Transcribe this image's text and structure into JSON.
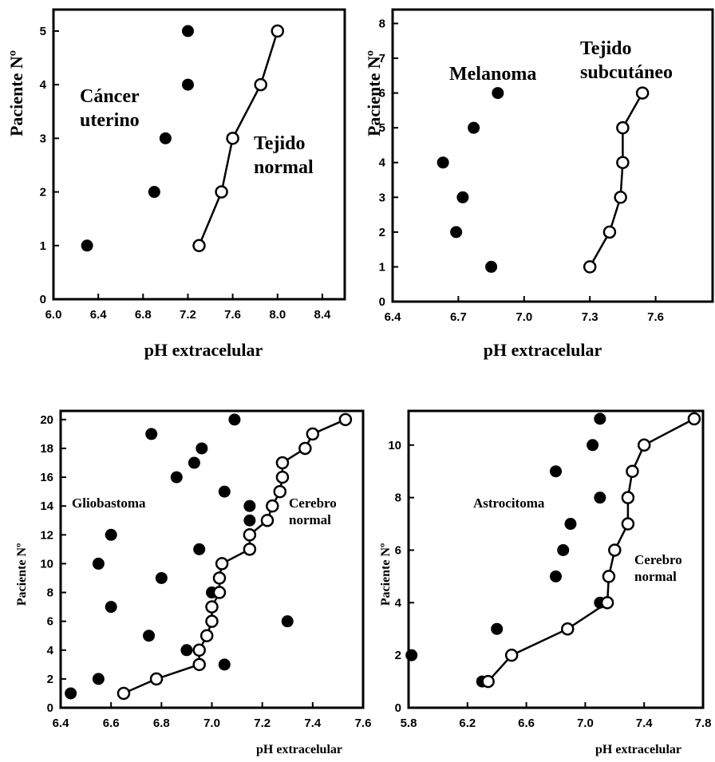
{
  "chart_data": [
    {
      "type": "scatter",
      "xlabel": "pH extracelular",
      "ylabel": "Paciente Nº",
      "xlim": [
        6.0,
        8.6
      ],
      "ylim": [
        0,
        5.4
      ],
      "xticks": [
        "6.0",
        "6.4",
        "6.8",
        "7.2",
        "7.6",
        "8.0",
        "8.4"
      ],
      "yticks": [
        "0",
        "1",
        "2",
        "3",
        "4",
        "5"
      ],
      "annotations": [
        {
          "lines": [
            "Cáncer",
            "uterino"
          ]
        },
        {
          "lines": [
            "Tejido",
            "normal"
          ]
        }
      ],
      "series": [
        {
          "marker": "filled",
          "connected": false,
          "points": [
            [
              6.3,
              1
            ],
            [
              6.9,
              2
            ],
            [
              7.0,
              3
            ],
            [
              7.2,
              4
            ],
            [
              7.2,
              5
            ]
          ]
        },
        {
          "marker": "open",
          "connected": true,
          "points": [
            [
              7.3,
              1
            ],
            [
              7.5,
              2
            ],
            [
              7.6,
              3
            ],
            [
              7.85,
              4
            ],
            [
              8.0,
              5
            ]
          ]
        }
      ]
    },
    {
      "type": "scatter",
      "xlabel": "pH extracelular",
      "ylabel": "Paciente Nº",
      "xlim": [
        6.4,
        7.86
      ],
      "ylim": [
        0,
        8.4
      ],
      "xticks": [
        "6.4",
        "6.7",
        "7.0",
        "7.3",
        "7.6"
      ],
      "yticks": [
        "0",
        "1",
        "2",
        "3",
        "4",
        "5",
        "6",
        "7",
        "8"
      ],
      "annotations": [
        {
          "lines": [
            "Melanoma"
          ]
        },
        {
          "lines": [
            "Tejido",
            "subcutáneo"
          ]
        }
      ],
      "series": [
        {
          "marker": "filled",
          "connected": false,
          "points": [
            [
              6.85,
              1
            ],
            [
              6.69,
              2
            ],
            [
              6.72,
              3
            ],
            [
              6.63,
              4
            ],
            [
              6.77,
              5
            ],
            [
              6.88,
              6
            ]
          ]
        },
        {
          "marker": "open",
          "connected": true,
          "points": [
            [
              7.3,
              1
            ],
            [
              7.39,
              2
            ],
            [
              7.44,
              3
            ],
            [
              7.45,
              4
            ],
            [
              7.45,
              5
            ],
            [
              7.54,
              6
            ]
          ]
        }
      ]
    },
    {
      "type": "scatter",
      "xlabel": "pH extracelular",
      "ylabel": "Paciente Nº",
      "xlim": [
        6.4,
        7.6
      ],
      "ylim": [
        0,
        20.6
      ],
      "xticks": [
        "6.4",
        "6.6",
        "6.8",
        "7.0",
        "7.2",
        "7.4",
        "7.6"
      ],
      "yticks": [
        "0",
        "2",
        "4",
        "6",
        "8",
        "10",
        "12",
        "14",
        "16",
        "18",
        "20"
      ],
      "annotations": [
        {
          "lines": [
            "Gliobastoma"
          ]
        },
        {
          "lines": [
            "Cerebro",
            "normal"
          ]
        }
      ],
      "series": [
        {
          "marker": "filled",
          "connected": false,
          "points": [
            [
              6.44,
              1
            ],
            [
              6.55,
              2
            ],
            [
              7.05,
              3
            ],
            [
              6.9,
              4
            ],
            [
              6.75,
              5
            ],
            [
              7.3,
              6
            ],
            [
              6.6,
              7
            ],
            [
              7.0,
              8
            ],
            [
              6.8,
              9
            ],
            [
              6.55,
              10
            ],
            [
              6.95,
              11
            ],
            [
              6.6,
              12
            ],
            [
              7.15,
              13
            ],
            [
              7.15,
              14
            ],
            [
              7.05,
              15
            ],
            [
              6.86,
              16
            ],
            [
              6.93,
              17
            ],
            [
              6.96,
              18
            ],
            [
              6.76,
              19
            ],
            [
              7.09,
              20
            ]
          ]
        },
        {
          "marker": "open",
          "connected": true,
          "points": [
            [
              6.65,
              1
            ],
            [
              6.78,
              2
            ],
            [
              6.95,
              3
            ],
            [
              6.95,
              4
            ],
            [
              6.98,
              5
            ],
            [
              7.0,
              6
            ],
            [
              7.0,
              7
            ],
            [
              7.03,
              8
            ],
            [
              7.03,
              9
            ],
            [
              7.04,
              10
            ],
            [
              7.15,
              11
            ],
            [
              7.15,
              12
            ],
            [
              7.22,
              13
            ],
            [
              7.24,
              14
            ],
            [
              7.27,
              15
            ],
            [
              7.28,
              16
            ],
            [
              7.28,
              17
            ],
            [
              7.37,
              18
            ],
            [
              7.4,
              19
            ],
            [
              7.53,
              20
            ]
          ]
        }
      ]
    },
    {
      "type": "scatter",
      "xlabel": "pH extracelular",
      "ylabel": "Paciente Nº",
      "xlim": [
        5.8,
        7.8
      ],
      "ylim": [
        0,
        11.3
      ],
      "xticks": [
        "5.8",
        "6.2",
        "6.6",
        "7.0",
        "7.4",
        "7.8"
      ],
      "yticks": [
        "0",
        "2",
        "4",
        "6",
        "8",
        "10"
      ],
      "annotations": [
        {
          "lines": [
            "Astrocitoma"
          ]
        },
        {
          "lines": [
            "Cerebro",
            "normal"
          ]
        }
      ],
      "series": [
        {
          "marker": "filled",
          "connected": false,
          "points": [
            [
              6.3,
              1
            ],
            [
              5.82,
              2
            ],
            [
              6.4,
              3
            ],
            [
              7.1,
              4
            ],
            [
              6.8,
              5
            ],
            [
              6.85,
              6
            ],
            [
              6.9,
              7
            ],
            [
              7.1,
              8
            ],
            [
              6.8,
              9
            ],
            [
              7.05,
              10
            ],
            [
              7.1,
              11
            ]
          ]
        },
        {
          "marker": "open",
          "connected": true,
          "points": [
            [
              6.34,
              1
            ],
            [
              6.5,
              2
            ],
            [
              6.88,
              3
            ],
            [
              7.15,
              4
            ],
            [
              7.16,
              5
            ],
            [
              7.2,
              6
            ],
            [
              7.29,
              7
            ],
            [
              7.29,
              8
            ],
            [
              7.32,
              9
            ],
            [
              7.4,
              10
            ],
            [
              7.74,
              11
            ]
          ]
        }
      ]
    }
  ]
}
